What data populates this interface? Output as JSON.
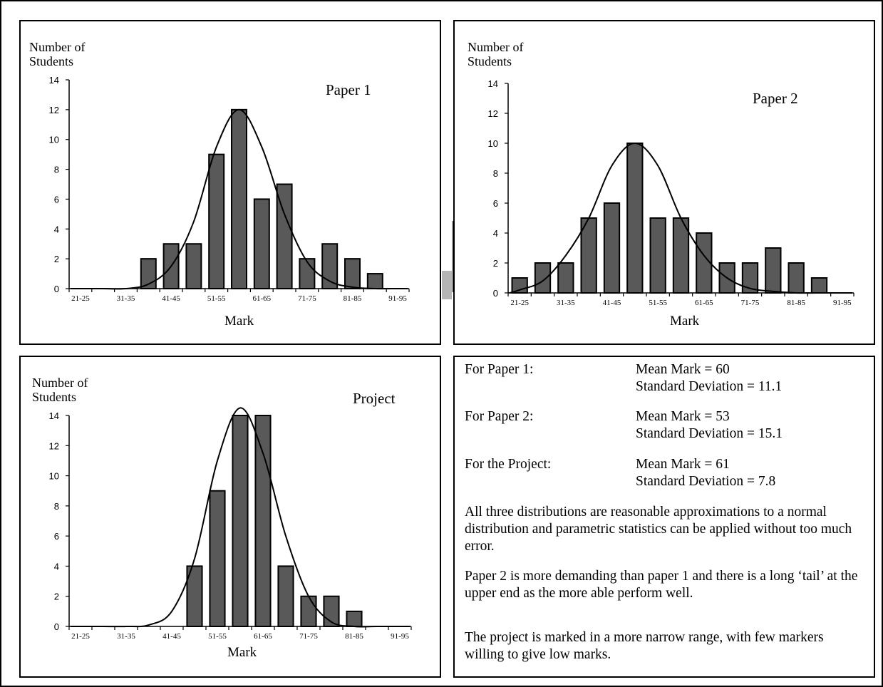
{
  "charts": [
    {
      "title": "Paper 1",
      "ylabel_line1": "Number of",
      "ylabel_line2": "Students",
      "xlabel": "Mark"
    },
    {
      "title": "Paper 2",
      "ylabel_line1": "Number of",
      "ylabel_line2": "Students",
      "xlabel": "Mark"
    },
    {
      "title": "Project",
      "ylabel_line1": "Number of",
      "ylabel_line2": "Students",
      "xlabel": "Mark"
    }
  ],
  "chart_data": [
    {
      "type": "bar",
      "title": "Paper 1",
      "xlabel": "Mark",
      "ylabel": "Number of Students",
      "ylim": [
        0,
        14
      ],
      "yticks": [
        0,
        2,
        4,
        6,
        8,
        10,
        12,
        14
      ],
      "categories": [
        "21-25",
        "26-30",
        "31-35",
        "36-40",
        "41-45",
        "46-50",
        "51-55",
        "56-60",
        "61-65",
        "66-70",
        "71-75",
        "76-80",
        "81-85",
        "86-90",
        "91-95"
      ],
      "tick_labels": [
        "21-25",
        "31-35",
        "41-45",
        "51-55",
        "61-65",
        "71-75",
        "81-85",
        "91-95"
      ],
      "values": [
        0,
        0,
        0,
        2,
        3,
        3,
        9,
        12,
        6,
        7,
        2,
        3,
        2,
        1,
        0
      ],
      "curve": [
        0,
        0,
        0,
        0.3,
        1.5,
        4.5,
        9.5,
        12,
        9.5,
        5,
        1.8,
        0.5,
        0.1,
        0,
        0
      ]
    },
    {
      "type": "bar",
      "title": "Paper 2",
      "xlabel": "Mark",
      "ylabel": "Number of Students",
      "ylim": [
        0,
        14
      ],
      "yticks": [
        0,
        2,
        4,
        6,
        8,
        10,
        12,
        14
      ],
      "categories": [
        "21-25",
        "26-30",
        "31-35",
        "36-40",
        "41-45",
        "46-50",
        "51-55",
        "56-60",
        "61-65",
        "66-70",
        "71-75",
        "76-80",
        "81-85",
        "86-90",
        "91-95"
      ],
      "tick_labels": [
        "21-25",
        "31-35",
        "41-45",
        "51-55",
        "61-65",
        "71-75",
        "81-85",
        "91-95"
      ],
      "values": [
        1,
        2,
        2,
        5,
        6,
        10,
        5,
        5,
        4,
        2,
        2,
        3,
        2,
        1,
        0
      ],
      "curve": [
        0.2,
        0.8,
        2.5,
        5,
        8.5,
        10,
        8.5,
        5,
        2.5,
        1,
        0.3,
        0.1,
        0,
        0,
        0
      ]
    },
    {
      "type": "bar",
      "title": "Project",
      "xlabel": "Mark",
      "ylabel": "Number of Students",
      "ylim": [
        0,
        14
      ],
      "yticks": [
        0,
        2,
        4,
        6,
        8,
        10,
        12,
        14
      ],
      "categories": [
        "21-25",
        "26-30",
        "31-35",
        "36-40",
        "41-45",
        "46-50",
        "51-55",
        "56-60",
        "61-65",
        "66-70",
        "71-75",
        "76-80",
        "81-85",
        "86-90",
        "91-95"
      ],
      "tick_labels": [
        "21-25",
        "31-35",
        "41-45",
        "51-55",
        "61-65",
        "71-75",
        "81-85",
        "91-95"
      ],
      "values": [
        0,
        0,
        0,
        0,
        0,
        4,
        9,
        14,
        14,
        4,
        2,
        2,
        1,
        0,
        0
      ],
      "curve": [
        0,
        0,
        0,
        0.1,
        1,
        4.5,
        11,
        14.5,
        11.5,
        6,
        2,
        0.3,
        0,
        0,
        0
      ]
    }
  ],
  "stats": [
    {
      "label": "For Paper 1:",
      "mean": "Mean Mark = 60",
      "sd": "Standard Deviation = 11.1"
    },
    {
      "label": "For Paper 2:",
      "mean": "Mean Mark = 53",
      "sd": "Standard Deviation = 15.1"
    },
    {
      "label": "For the Project:",
      "mean": "Mean Mark = 61",
      "sd": "Standard Deviation = 7.8"
    }
  ],
  "paragraphs": [
    "All three distributions are reasonable approximations to a normal distribution and parametric statistics can be applied without too much error.",
    "Paper 2 is more demanding than paper 1 and there is a long ‘tail’ at the upper end as the more able perform well.",
    "The project is marked in a more narrow range, with few markers willing to give low marks."
  ],
  "colors": {
    "bar_fill": "#595959",
    "stroke": "#000000",
    "gray_marker": "#b5b5b5"
  }
}
